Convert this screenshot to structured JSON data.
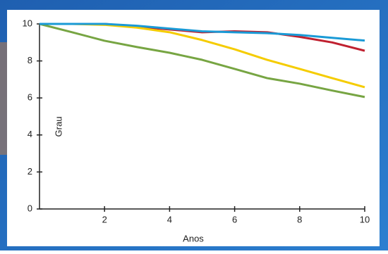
{
  "chart_data": {
    "type": "line",
    "x_label": "Anos",
    "y_label": "Grau",
    "x": [
      0,
      1,
      2,
      3,
      4,
      5,
      6,
      7,
      8,
      9,
      10
    ],
    "series": [
      {
        "color": "#c0202f",
        "values": [
          10,
          10,
          10,
          9.85,
          9.7,
          9.55,
          9.6,
          9.55,
          9.3,
          9.0,
          8.55
        ]
      },
      {
        "color": "#f5cc00",
        "values": [
          10,
          10,
          9.95,
          9.8,
          9.55,
          9.13,
          8.63,
          8.06,
          7.57,
          7.07,
          6.58
        ]
      },
      {
        "color": "#77a543",
        "values": [
          10,
          9.55,
          9.09,
          8.75,
          8.44,
          8.06,
          7.57,
          7.07,
          6.77,
          6.4,
          6.05
        ]
      },
      {
        "color": "#1a9ad6",
        "values": [
          10,
          10,
          10,
          9.9,
          9.75,
          9.6,
          9.55,
          9.5,
          9.4,
          9.25,
          9.1
        ]
      }
    ],
    "xlim": [
      0,
      10
    ],
    "xticks": [
      2,
      4,
      6,
      8,
      10
    ],
    "ylim": [
      0,
      10
    ],
    "yticks": [
      0,
      2,
      4,
      6,
      8,
      10
    ]
  }
}
